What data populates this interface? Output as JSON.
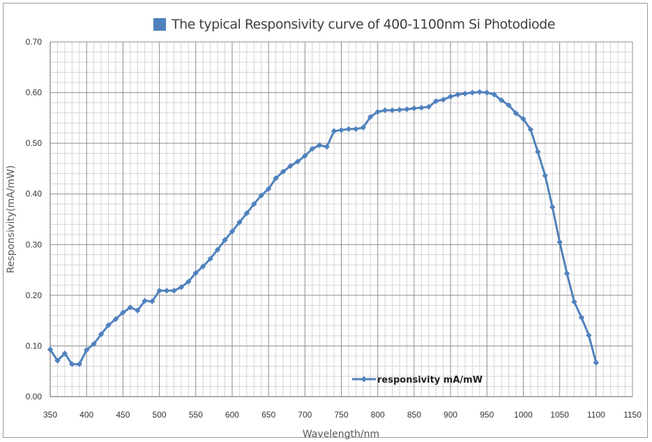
{
  "chart_data": {
    "type": "line",
    "title": "The typical Responsivity curve of 400-1100nm Si Photodiode",
    "xlabel": "Wavelength/nm",
    "ylabel": "Responsivity(mA/mW)",
    "xlim": [
      350,
      1150
    ],
    "ylim": [
      0.0,
      0.7
    ],
    "x_ticks": [
      350,
      400,
      450,
      500,
      550,
      600,
      650,
      700,
      750,
      800,
      850,
      900,
      950,
      1000,
      1050,
      1100,
      1150
    ],
    "x_tick_labels": [
      "350",
      "400",
      "450",
      "500",
      "550",
      "600",
      "650",
      "700",
      "750",
      "800",
      "850",
      "900",
      "950",
      "1000",
      "1050",
      "1100",
      "1150"
    ],
    "y_ticks": [
      0.0,
      0.1,
      0.2,
      0.3,
      0.4,
      0.5,
      0.6,
      0.7
    ],
    "y_tick_labels": [
      "0.00",
      "0.10",
      "0.20",
      "0.30",
      "0.40",
      "0.50",
      "0.60",
      "0.70"
    ],
    "grid": true,
    "legend_position": "bottom-center",
    "series": [
      {
        "name": "responsivity mA/mW",
        "color": "#4f81bd",
        "x": [
          350,
          360,
          370,
          380,
          390,
          400,
          410,
          420,
          430,
          440,
          450,
          460,
          470,
          480,
          490,
          500,
          510,
          520,
          530,
          540,
          550,
          560,
          570,
          580,
          590,
          600,
          610,
          620,
          630,
          640,
          650,
          660,
          670,
          680,
          690,
          700,
          710,
          720,
          730,
          740,
          750,
          760,
          770,
          780,
          790,
          800,
          810,
          820,
          830,
          840,
          850,
          860,
          870,
          880,
          890,
          900,
          910,
          920,
          930,
          940,
          950,
          960,
          970,
          980,
          990,
          1000,
          1010,
          1020,
          1030,
          1040,
          1050,
          1060,
          1070,
          1080,
          1090,
          1100
        ],
        "values": [
          0.093,
          0.071,
          0.085,
          0.064,
          0.064,
          0.092,
          0.104,
          0.123,
          0.141,
          0.153,
          0.166,
          0.176,
          0.17,
          0.189,
          0.188,
          0.209,
          0.209,
          0.209,
          0.216,
          0.227,
          0.244,
          0.257,
          0.272,
          0.29,
          0.309,
          0.326,
          0.344,
          0.362,
          0.38,
          0.397,
          0.41,
          0.431,
          0.444,
          0.455,
          0.464,
          0.475,
          0.489,
          0.496,
          0.493,
          0.524,
          0.526,
          0.528,
          0.528,
          0.531,
          0.552,
          0.562,
          0.565,
          0.565,
          0.566,
          0.567,
          0.569,
          0.57,
          0.572,
          0.583,
          0.586,
          0.592,
          0.596,
          0.598,
          0.6,
          0.601,
          0.6,
          0.596,
          0.585,
          0.575,
          0.559,
          0.548,
          0.527,
          0.483,
          0.436,
          0.374,
          0.305,
          0.243,
          0.187,
          0.156,
          0.121,
          0.067
        ]
      }
    ]
  }
}
